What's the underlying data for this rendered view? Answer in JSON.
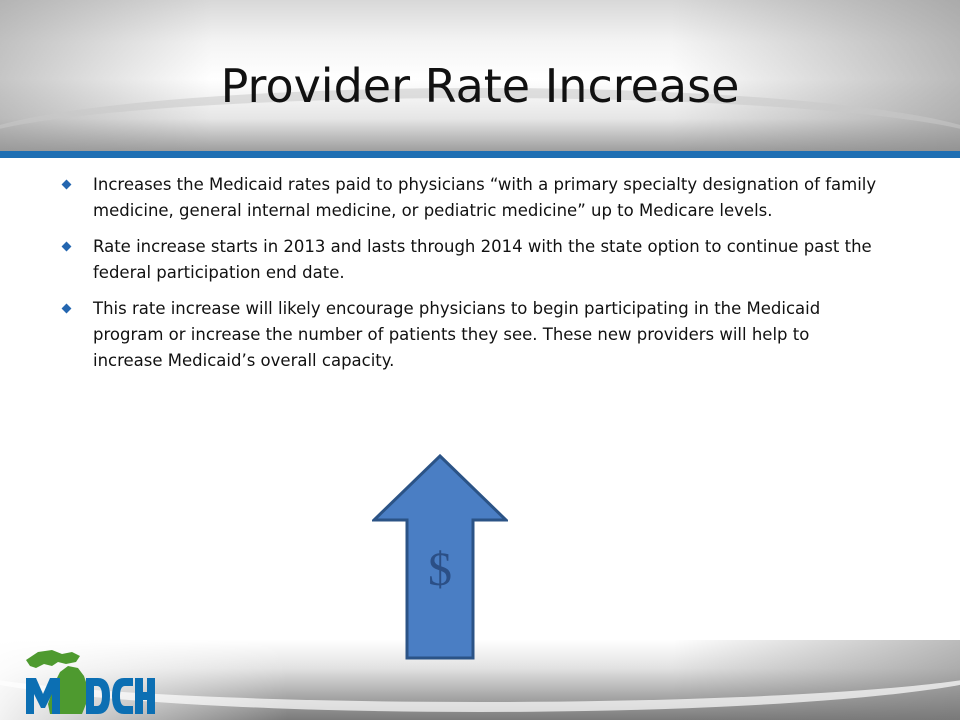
{
  "slide": {
    "title": "Provider Rate Increase",
    "bullets": [
      {
        "text": "Increases the Medicaid rates paid to physicians “with a primary specialty designation of family medicine, general internal medicine, or pediatric medicine” up to Medicare levels."
      },
      {
        "text": "Rate increase starts in 2013 and lasts through 2014 with the state option to continue past the federal participation end date."
      },
      {
        "text": "This rate increase will likely encourage physicians to begin participating in the Medicaid program or increase the number of patients they see. These new providers will help to increase Medicaid’s overall capacity."
      }
    ],
    "arrow_symbol": "$",
    "arrow_icon": "up-arrow-icon",
    "logo_text": "MDCH",
    "logo_icon": "michigan-map-icon",
    "colors": {
      "accent_blue": "#1f6fb3",
      "arrow_fill": "#4a7ec4",
      "arrow_stroke": "#2b5386",
      "logo_blue": "#0c6fb3",
      "logo_green": "#4e9a2f"
    }
  }
}
